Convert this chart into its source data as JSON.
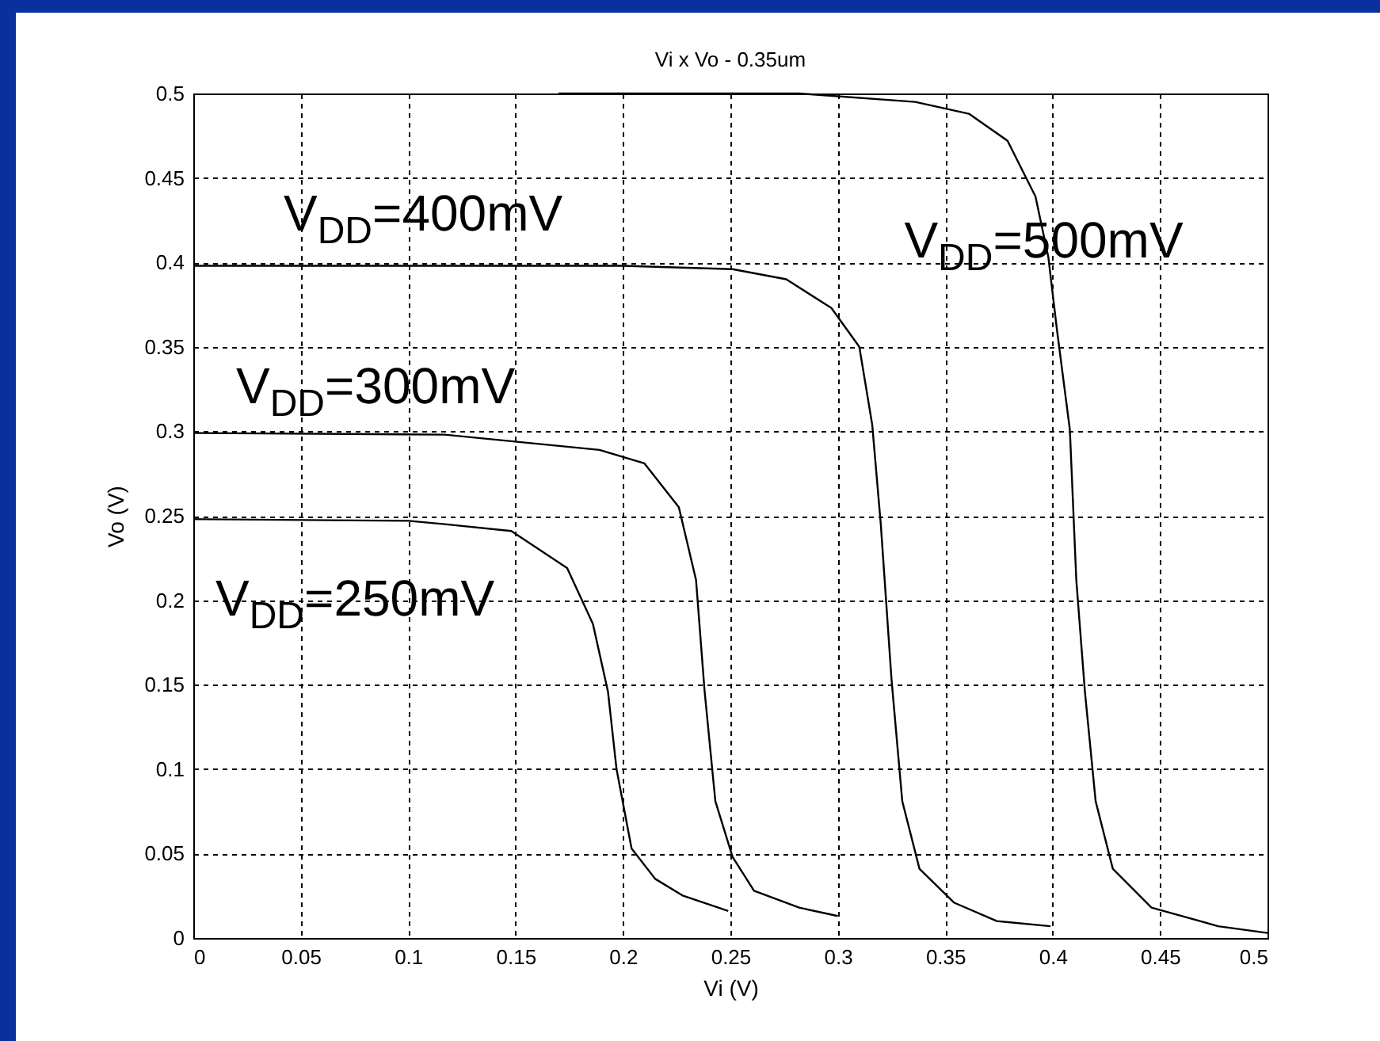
{
  "chart_data": {
    "type": "line",
    "title": "Vi x Vo - 0.35um",
    "xlabel": "Vi (V)",
    "ylabel": "Vo (V)",
    "xlim": [
      0,
      0.5
    ],
    "ylim": [
      0,
      0.5
    ],
    "xticks": [
      0,
      0.05,
      0.1,
      0.15,
      0.2,
      0.25,
      0.3,
      0.35,
      0.4,
      0.45,
      0.5
    ],
    "yticks": [
      0,
      0.05,
      0.1,
      0.15,
      0.2,
      0.25,
      0.3,
      0.35,
      0.4,
      0.45,
      0.5
    ],
    "grid": true,
    "line_style": "solid",
    "marker": "none",
    "series": [
      {
        "name": "V$_{DD}$=250mV",
        "color": "#000000",
        "x": [
          0,
          0.1,
          0.117,
          0.148,
          0.174,
          0.186,
          0.193,
          0.197,
          0.204,
          0.215,
          0.228,
          0.249
        ],
        "values": [
          0.248,
          0.247,
          0.245,
          0.241,
          0.219,
          0.186,
          0.146,
          0.1,
          0.053,
          0.035,
          0.025,
          0.016
        ]
      },
      {
        "name": "V$_{DD}$=300mV",
        "color": "#000000",
        "x": [
          0,
          0.117,
          0.189,
          0.21,
          0.226,
          0.234,
          0.238,
          0.243,
          0.251,
          0.261,
          0.282,
          0.3
        ],
        "values": [
          0.299,
          0.298,
          0.289,
          0.281,
          0.255,
          0.212,
          0.146,
          0.081,
          0.048,
          0.028,
          0.018,
          0.013
        ]
      },
      {
        "name": "V$_{DD}$=400mV",
        "color": "#000000",
        "x": [
          0,
          0.2,
          0.251,
          0.276,
          0.297,
          0.31,
          0.316,
          0.32,
          0.325,
          0.33,
          0.338,
          0.354,
          0.374,
          0.399
        ],
        "values": [
          0.398,
          0.398,
          0.396,
          0.39,
          0.373,
          0.35,
          0.304,
          0.245,
          0.153,
          0.081,
          0.041,
          0.021,
          0.01,
          0.007
        ]
      },
      {
        "name": "V$_{DD}$=500mV",
        "color": "#000000",
        "x": [
          0.17,
          0.282,
          0.336,
          0.361,
          0.379,
          0.392,
          0.398,
          0.402,
          0.408,
          0.411,
          0.415,
          0.42,
          0.428,
          0.446,
          0.477,
          0.5
        ],
        "values": [
          0.5,
          0.5,
          0.495,
          0.488,
          0.472,
          0.439,
          0.403,
          0.36,
          0.301,
          0.212,
          0.146,
          0.081,
          0.041,
          0.018,
          0.007,
          0.003
        ]
      }
    ]
  }
}
